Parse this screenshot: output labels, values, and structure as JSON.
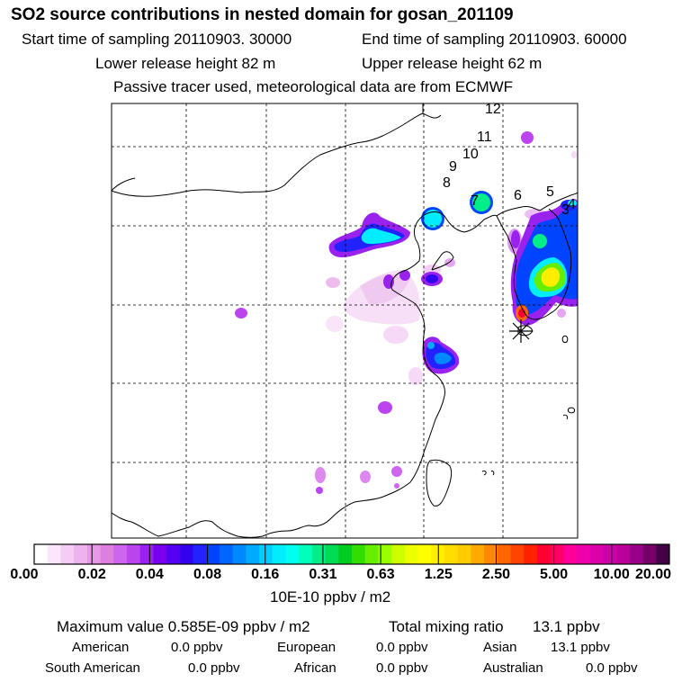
{
  "header": {
    "title": "SO2 source contributions in nested domain for gosan_201109",
    "start_time": "Start time of sampling 20110903. 30000",
    "end_time": "End time of sampling 20110903. 60000",
    "lower_release": "Lower release height   82 m",
    "upper_release": "Upper release height   62 m",
    "tracer_note": "Passive tracer used, meteorological data are from ECMWF"
  },
  "map": {
    "trajectory_labels": [
      "12",
      "11",
      "10",
      "9",
      "8",
      "7",
      "6",
      "5",
      "4",
      "3"
    ],
    "receptor_symbol": "*"
  },
  "colorbar": {
    "labels": [
      "0.00",
      "0.02",
      "0.04",
      "0.08",
      "0.16",
      "0.31",
      "0.63",
      "1.25",
      "2.50",
      "5.00",
      "10.00",
      "20.00"
    ],
    "units": "10E-10 ppbv / m2",
    "colors": [
      "#ffffff",
      "#fbe6fb",
      "#f5ccf5",
      "#eeb3ee",
      "#e699e6",
      "#dd7fdd",
      "#cc66ee",
      "#bb44ee",
      "#9922ee",
      "#7700ee",
      "#5500ee",
      "#3300ee",
      "#2222ff",
      "#0044ff",
      "#0066ff",
      "#0088ff",
      "#00aaff",
      "#00ccff",
      "#00eeff",
      "#00ffee",
      "#00ffbb",
      "#00ee88",
      "#00dd55",
      "#00cc22",
      "#33dd00",
      "#66ee00",
      "#99ff00",
      "#ccff00",
      "#eeff00",
      "#ffff00",
      "#ffee00",
      "#ffdd00",
      "#ffcc00",
      "#ffaa00",
      "#ff8800",
      "#ff6600",
      "#ff4400",
      "#ff2200",
      "#ff0033",
      "#ff0066",
      "#ff0099",
      "#ee00aa",
      "#dd00aa",
      "#cc00aa",
      "#bb0099",
      "#990088",
      "#770066",
      "#440044"
    ]
  },
  "stats": {
    "max_label": "Maximum value  0.585E-09 ppbv / m2",
    "total_label": "Total mixing ratio",
    "total_value": "13.1 ppbv",
    "regions": [
      {
        "name": "American",
        "value": "0.0 ppbv"
      },
      {
        "name": "European",
        "value": "0.0 ppbv"
      },
      {
        "name": "Asian",
        "value": "13.1 ppbv"
      },
      {
        "name": "South American",
        "value": "0.0 ppbv"
      },
      {
        "name": "African",
        "value": "0.0 ppbv"
      },
      {
        "name": "Australian",
        "value": "0.0 ppbv"
      }
    ]
  }
}
